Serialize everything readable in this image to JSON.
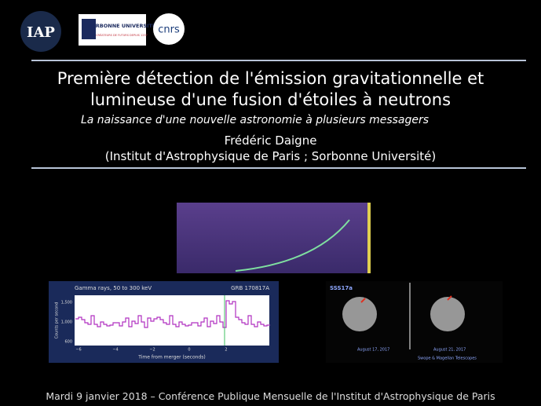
{
  "header": {
    "logos": {
      "iap": "IAP",
      "sorbonne": "SORBONNE UNIVERSITÉ",
      "sorbonne_tagline": "CRÉATEURS DE FUTURS DEPUIS 1257",
      "cnrs": "cnrs"
    }
  },
  "title": {
    "line1": "Première détection de l'émission gravitationnelle et",
    "line2": "lumineuse d'une fusion d'étoiles à neutrons",
    "subtitle": "La naissance d'une nouvelle astronomie à plusieurs messagers",
    "author": "Frédéric Daigne",
    "affiliation": "(Institut d'Astrophysique de Paris ; Sorbonne Université)"
  },
  "figures": {
    "gamma": {
      "title": "Gamma rays, 50 to 300 keV",
      "label": "GRB 170817A",
      "xlabel": "Time from merger (seconds)",
      "ylabel": "Counts per second",
      "xticks": [
        "−6",
        "−4",
        "−2",
        "0",
        "2"
      ],
      "yticks": [
        "1,500",
        "1,000",
        "600"
      ]
    },
    "optical": {
      "name": "SSS17a",
      "date1": "August 17, 2017",
      "date2": "August 21, 2017",
      "credit": "Swope & Magellan Telescopes"
    }
  },
  "footer": "Mardi 9 janvier 2018 – Conférence Publique Mensuelle de l'Institut d'Astrophysique de Paris"
}
